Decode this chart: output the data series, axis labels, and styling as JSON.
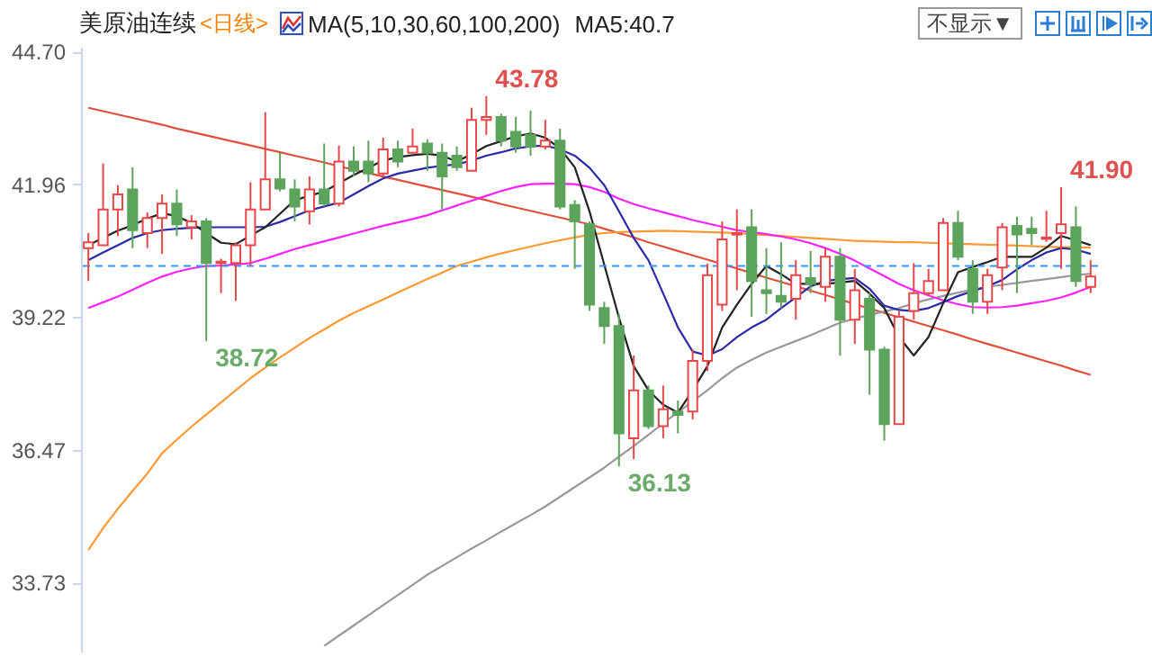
{
  "chart_data": {
    "type": "candlestick",
    "title": "美原油连续",
    "subtitle": "<日线>",
    "categories": [
      null,
      null,
      null,
      null,
      null,
      null,
      null,
      null,
      null,
      null,
      null,
      null,
      null,
      null,
      null,
      null,
      null,
      null,
      null,
      null,
      null,
      null,
      null,
      null,
      null,
      null,
      null,
      null,
      null,
      null,
      null,
      null,
      null,
      null,
      null,
      null,
      null,
      null,
      null,
      null,
      null,
      null,
      null,
      null,
      null,
      null,
      null,
      null,
      null,
      null,
      null,
      null,
      null,
      null,
      null,
      null,
      null,
      null,
      null,
      null,
      null,
      null,
      null,
      null,
      null,
      null,
      null,
      null,
      null
    ],
    "ohlc": [
      [
        40.64,
        40.95,
        39.96,
        40.76
      ],
      [
        40.7,
        42.39,
        40.7,
        41.44
      ],
      [
        41.44,
        41.94,
        40.89,
        41.75
      ],
      [
        41.85,
        42.31,
        40.64,
        41.01
      ],
      [
        40.95,
        41.38,
        40.64,
        41.26
      ],
      [
        41.26,
        41.75,
        40.52,
        41.56
      ],
      [
        41.56,
        41.85,
        40.89,
        41.13
      ],
      [
        41.07,
        41.32,
        40.82,
        41.19
      ],
      [
        41.19,
        41.26,
        38.72,
        40.33
      ],
      [
        40.33,
        40.42,
        39.71,
        40.36
      ],
      [
        40.33,
        40.76,
        39.55,
        40.7
      ],
      [
        40.7,
        42.0,
        40.27,
        41.44
      ],
      [
        41.44,
        43.45,
        41.44,
        42.06
      ],
      [
        42.06,
        42.61,
        41.81,
        41.87
      ],
      [
        41.85,
        42.06,
        41.19,
        41.5
      ],
      [
        41.4,
        42.12,
        41.13,
        41.85
      ],
      [
        41.85,
        42.8,
        41.5,
        41.56
      ],
      [
        41.56,
        42.76,
        41.5,
        42.43
      ],
      [
        42.43,
        42.74,
        42.12,
        42.24
      ],
      [
        42.43,
        42.86,
        42.0,
        42.18
      ],
      [
        42.18,
        42.92,
        42.12,
        42.68
      ],
      [
        42.68,
        42.86,
        42.31,
        42.43
      ],
      [
        42.61,
        43.11,
        42.61,
        42.74
      ],
      [
        42.8,
        42.89,
        42.24,
        42.61
      ],
      [
        42.61,
        42.8,
        41.44,
        42.12
      ],
      [
        42.55,
        42.74,
        42.24,
        42.31
      ],
      [
        42.24,
        43.54,
        42.24,
        43.29
      ],
      [
        43.29,
        43.78,
        42.98,
        43.35
      ],
      [
        43.35,
        43.42,
        42.74,
        42.86
      ],
      [
        43.04,
        43.35,
        42.61,
        42.74
      ],
      [
        42.98,
        43.48,
        42.55,
        42.74
      ],
      [
        42.74,
        43.29,
        42.68,
        42.86
      ],
      [
        42.86,
        43.11,
        41.44,
        41.5
      ],
      [
        41.53,
        41.63,
        40.21,
        41.19
      ],
      [
        41.13,
        41.19,
        39.34,
        39.47
      ],
      [
        39.4,
        39.53,
        38.66,
        39.03
      ],
      [
        39.03,
        39.28,
        36.13,
        36.81
      ],
      [
        36.71,
        38.42,
        36.28,
        37.7
      ],
      [
        37.7,
        37.8,
        36.9,
        36.96
      ],
      [
        36.96,
        37.8,
        36.71,
        37.31
      ],
      [
        37.26,
        37.49,
        36.81,
        37.19
      ],
      [
        37.26,
        38.55,
        37.1,
        38.31
      ],
      [
        38.31,
        40.32,
        38.1,
        40.08
      ],
      [
        39.47,
        41.19,
        39.34,
        40.82
      ],
      [
        40.92,
        41.44,
        39.77,
        40.95
      ],
      [
        41.07,
        41.44,
        39.22,
        39.96
      ],
      [
        39.77,
        40.64,
        39.28,
        39.71
      ],
      [
        39.65,
        40.76,
        39.4,
        39.53
      ],
      [
        39.59,
        40.39,
        39.16,
        40.08
      ],
      [
        40.02,
        40.58,
        39.71,
        39.9
      ],
      [
        39.84,
        40.64,
        39.53,
        40.46
      ],
      [
        40.46,
        40.64,
        38.42,
        39.16
      ],
      [
        39.16,
        40.21,
        38.66,
        39.77
      ],
      [
        39.59,
        39.71,
        37.61,
        38.54
      ],
      [
        38.54,
        38.6,
        36.66,
        37.0
      ],
      [
        37.0,
        39.34,
        37.0,
        39.22
      ],
      [
        39.34,
        40.33,
        39.16,
        39.71
      ],
      [
        39.71,
        40.21,
        39.65,
        39.96
      ],
      [
        39.77,
        41.26,
        39.77,
        41.16
      ],
      [
        41.16,
        41.41,
        40.39,
        40.46
      ],
      [
        40.21,
        40.39,
        39.28,
        39.53
      ],
      [
        39.53,
        40.21,
        39.28,
        40.08
      ],
      [
        40.24,
        41.16,
        39.77,
        41.07
      ],
      [
        41.1,
        41.29,
        39.71,
        40.92
      ],
      [
        41.04,
        41.29,
        40.7,
        40.95
      ],
      [
        40.83,
        41.41,
        40.77,
        40.86
      ],
      [
        40.95,
        41.9,
        40.21,
        41.13
      ],
      [
        41.07,
        41.5,
        39.84,
        39.96
      ],
      [
        39.84,
        40.39,
        39.71,
        40.05
      ]
    ],
    "series": [
      {
        "type": "line",
        "color": "#e0503c",
        "values": [
          43.54,
          43.47,
          43.4,
          43.33,
          43.26,
          43.19,
          43.11,
          43.04,
          42.97,
          42.9,
          42.83,
          42.76,
          42.69,
          42.62,
          42.55,
          42.48,
          42.41,
          42.33,
          42.26,
          42.19,
          42.12,
          42.05,
          41.98,
          41.91,
          41.84,
          41.77,
          41.7,
          41.63,
          41.55,
          41.48,
          41.41,
          41.34,
          41.27,
          41.2,
          41.13,
          41.04,
          40.95,
          40.86,
          40.76,
          40.67,
          40.58,
          40.49,
          40.4,
          40.31,
          40.22,
          40.12,
          40.03,
          39.94,
          39.85,
          39.76,
          39.67,
          39.58,
          39.48,
          39.39,
          39.3,
          39.21,
          39.12,
          39.03,
          38.94,
          38.85,
          38.75,
          38.66,
          38.57,
          38.48,
          38.39,
          38.3,
          38.21,
          38.11,
          38.02
        ]
      },
      {
        "type": "line",
        "color": "#999999",
        "values": [
          null,
          null,
          null,
          null,
          null,
          null,
          null,
          null,
          null,
          null,
          null,
          null,
          null,
          null,
          null,
          null,
          32.42,
          32.63,
          32.84,
          33.05,
          33.26,
          33.47,
          33.68,
          33.89,
          34.07,
          34.25,
          34.43,
          34.6,
          34.78,
          34.95,
          35.12,
          35.3,
          35.5,
          35.7,
          35.9,
          36.1,
          36.33,
          36.55,
          36.78,
          37.02,
          37.25,
          37.47,
          37.7,
          37.95,
          38.17,
          38.33,
          38.48,
          38.6,
          38.72,
          38.84,
          38.97,
          39.1,
          39.18,
          39.26,
          39.33,
          39.4,
          39.5,
          39.58,
          39.65,
          39.72,
          39.78,
          39.84,
          39.88,
          39.92,
          39.96,
          40.0,
          40.04,
          40.08,
          40.11
        ]
      },
      {
        "type": "line",
        "color": "#ff9933",
        "values": [
          34.4,
          34.85,
          35.25,
          35.62,
          35.98,
          36.4,
          36.68,
          36.95,
          37.2,
          37.45,
          37.7,
          37.95,
          38.17,
          38.38,
          38.58,
          38.78,
          38.96,
          39.14,
          39.3,
          39.44,
          39.58,
          39.72,
          39.86,
          40.0,
          40.13,
          40.27,
          40.36,
          40.45,
          40.53,
          40.6,
          40.67,
          40.74,
          40.8,
          40.86,
          40.92,
          40.95,
          40.97,
          40.98,
          40.99,
          41.0,
          40.99,
          40.98,
          40.97,
          40.96,
          40.95,
          40.93,
          40.91,
          40.89,
          40.87,
          40.85,
          40.83,
          40.81,
          40.79,
          40.78,
          40.77,
          40.76,
          40.76,
          40.75,
          40.74,
          40.73,
          40.72,
          40.71,
          40.7,
          40.69,
          40.68,
          40.67,
          40.66,
          40.66,
          40.65
        ]
      },
      {
        "type": "line",
        "color": "#ff22ff",
        "values": [
          39.4,
          39.52,
          39.64,
          39.78,
          39.92,
          40.05,
          40.15,
          40.22,
          40.27,
          40.28,
          40.3,
          40.33,
          40.42,
          40.52,
          40.62,
          40.7,
          40.78,
          40.86,
          40.94,
          41.02,
          41.1,
          41.17,
          41.24,
          41.32,
          41.42,
          41.52,
          41.62,
          41.72,
          41.82,
          41.9,
          41.96,
          41.97,
          41.97,
          41.96,
          41.9,
          41.8,
          41.66,
          41.55,
          41.46,
          41.38,
          41.3,
          41.22,
          41.15,
          41.08,
          41.01,
          40.97,
          40.93,
          40.88,
          40.82,
          40.74,
          40.64,
          40.52,
          40.38,
          40.22,
          40.06,
          39.9,
          39.77,
          39.66,
          39.56,
          39.48,
          39.42,
          39.41,
          39.42,
          39.45,
          39.5,
          39.55,
          39.62,
          39.72,
          39.84
        ]
      },
      {
        "type": "line",
        "color": "#2a2aa8",
        "values": [
          40.39,
          40.55,
          40.7,
          40.85,
          40.95,
          41.01,
          41.04,
          41.06,
          41.07,
          41.07,
          41.07,
          41.07,
          41.08,
          41.18,
          41.3,
          41.42,
          41.5,
          41.58,
          41.75,
          41.92,
          42.08,
          42.18,
          42.24,
          42.3,
          42.34,
          42.37,
          42.45,
          42.55,
          42.62,
          42.7,
          42.74,
          42.76,
          42.68,
          42.55,
          42.3,
          41.94,
          41.4,
          40.85,
          40.39,
          39.7,
          39.0,
          38.5,
          38.42,
          38.55,
          38.8,
          39.0,
          39.16,
          39.4,
          39.62,
          39.85,
          39.96,
          40.0,
          40.02,
          39.8,
          39.45,
          39.36,
          39.34,
          39.4,
          39.52,
          39.65,
          39.75,
          39.85,
          39.98,
          40.2,
          40.39,
          40.55,
          40.64,
          40.61,
          40.52
        ]
      },
      {
        "type": "line",
        "color": "#222222",
        "values": [
          40.7,
          40.85,
          41.0,
          41.11,
          41.25,
          41.36,
          41.3,
          41.16,
          40.95,
          40.75,
          40.72,
          40.9,
          41.07,
          41.35,
          41.63,
          41.72,
          41.81,
          41.98,
          42.15,
          42.3,
          42.45,
          42.52,
          42.56,
          42.59,
          42.55,
          42.43,
          42.58,
          42.75,
          42.85,
          42.95,
          43.01,
          42.92,
          42.7,
          42.31,
          41.4,
          40.3,
          39.2,
          38.2,
          37.7,
          37.4,
          37.24,
          37.7,
          38.2,
          39.0,
          39.47,
          39.9,
          40.27,
          40.1,
          39.9,
          39.9,
          39.9,
          39.93,
          39.96,
          39.7,
          39.4,
          38.8,
          38.42,
          38.8,
          39.5,
          40.14,
          40.25,
          40.35,
          40.46,
          40.46,
          40.46,
          40.65,
          40.89,
          40.8,
          40.7
        ]
      }
    ],
    "ylim": [
      32.3,
      44.8
    ],
    "yticks": [
      33.73,
      36.47,
      39.22,
      41.96,
      {
        "value": 44.7,
        "label": "44.70"
      }
    ],
    "ref_lines": [
      {
        "axis": "y",
        "value": 40.27,
        "color": "#3399ff",
        "line_style": "dashed"
      }
    ],
    "annotations": [
      "MA(5,10,30,60,100,200)",
      "MA5:40.7",
      "不显示▼",
      "43.78",
      "38.72",
      "36.13",
      "41.90"
    ]
  }
}
